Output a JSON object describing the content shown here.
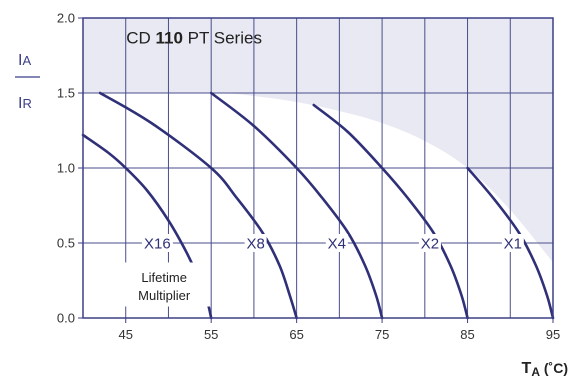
{
  "chart_data": {
    "type": "line",
    "title_prefix": "CD ",
    "title_bold": "110",
    "title_suffix": " PT Series",
    "ylabel_top": "IA",
    "ylabel_bottom": "IR",
    "xlabel_main": "T",
    "xlabel_sub": "A",
    "xlabel_unit": " (˚C)",
    "xlim": [
      40,
      95
    ],
    "ylim": [
      0,
      2.0
    ],
    "x_ticks": [
      45,
      55,
      65,
      75,
      85,
      95
    ],
    "x_tick_labels": [
      "45",
      "55",
      "65",
      "75",
      "85",
      "95"
    ],
    "y_ticks": [
      0,
      0.5,
      1.0,
      1.5,
      2.0
    ],
    "y_tick_labels": [
      "0.0",
      "0.5",
      "1.0",
      "1.5",
      "2.0"
    ],
    "grid": true,
    "series": [
      {
        "name": "X16",
        "x": [
          40,
          43,
          45,
          47.5,
          50,
          52,
          53.5,
          54.5,
          55
        ],
        "y": [
          1.22,
          1.1,
          1.0,
          0.85,
          0.65,
          0.45,
          0.27,
          0.12,
          0.0
        ]
      },
      {
        "name": "X8",
        "x": [
          42,
          48,
          55,
          58,
          61,
          63,
          64.2,
          65
        ],
        "y": [
          1.5,
          1.3,
          1.0,
          0.8,
          0.57,
          0.35,
          0.15,
          0.0
        ]
      },
      {
        "name": "X4",
        "x": [
          55,
          60,
          65,
          68,
          71,
          73,
          74.3,
          75
        ],
        "y": [
          1.5,
          1.28,
          1.0,
          0.8,
          0.57,
          0.35,
          0.15,
          0.0
        ]
      },
      {
        "name": "X2",
        "x": [
          67,
          71,
          75,
          78,
          81,
          83,
          84.3,
          85
        ],
        "y": [
          1.42,
          1.24,
          1.0,
          0.8,
          0.57,
          0.35,
          0.15,
          0.0
        ]
      },
      {
        "name": "X1",
        "x": [
          85,
          88,
          91,
          93,
          94.3,
          95
        ],
        "y": [
          1.0,
          0.8,
          0.57,
          0.35,
          0.15,
          0.0
        ]
      }
    ],
    "curve_labels": [
      {
        "text": "X16",
        "x": 48.7,
        "y": 0.5
      },
      {
        "text": "X8",
        "x": 60.2,
        "y": 0.5
      },
      {
        "text": "X4",
        "x": 69.7,
        "y": 0.5
      },
      {
        "text": "X2",
        "x": 80.6,
        "y": 0.5
      },
      {
        "text": "X1",
        "x": 90.3,
        "y": 0.5
      }
    ],
    "annotation_lines": [
      "Lifetime",
      "Multiplier"
    ],
    "shaded_region_boundary": {
      "x": [
        40,
        55,
        60,
        65,
        70,
        75,
        80,
        85,
        90,
        95
      ],
      "y": [
        1.5,
        1.5,
        1.48,
        1.44,
        1.38,
        1.3,
        1.18,
        1.0,
        0.72,
        0.37
      ]
    },
    "colors": {
      "curve": "#2f3078",
      "grid": "#4a4d8c",
      "axis": "#3b3f86",
      "shade": "#e8e9f2"
    }
  }
}
